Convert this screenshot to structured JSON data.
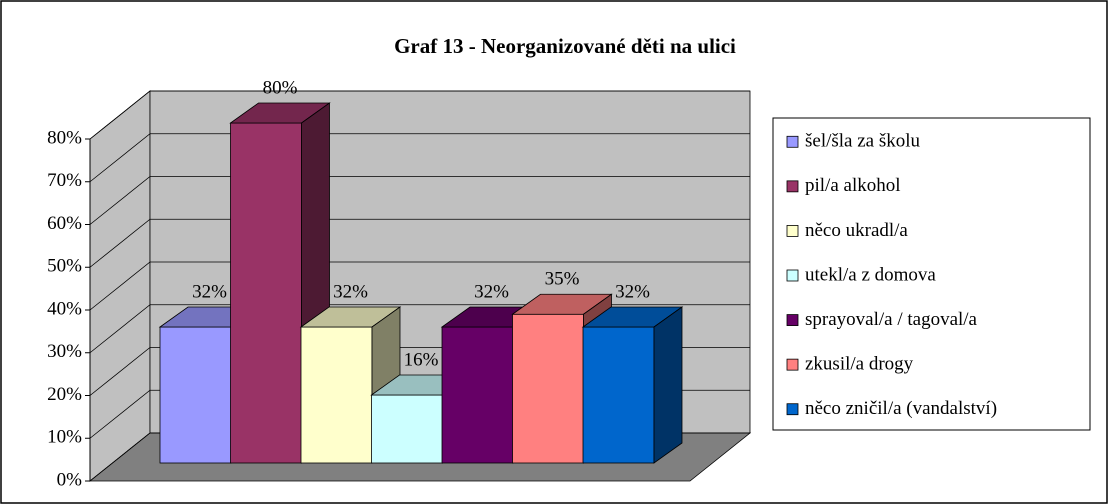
{
  "chart_data": {
    "type": "bar3d",
    "title": "Graf 13 - Neorganizované děti na ulici",
    "series": [
      {
        "name": "šel/šla za školu",
        "color": "#9999ff",
        "values": [
          32
        ],
        "value_labels": [
          "32%"
        ]
      },
      {
        "name": "pil/a alkohol",
        "color": "#993366",
        "values": [
          80
        ],
        "value_labels": [
          "80%"
        ]
      },
      {
        "name": "něco ukradl/a",
        "color": "#ffffcc",
        "values": [
          32
        ],
        "value_labels": [
          "32%"
        ]
      },
      {
        "name": "utekl/a z domova",
        "color": "#ccffff",
        "values": [
          16
        ],
        "value_labels": [
          "16%"
        ]
      },
      {
        "name": "sprayoval/a / tagoval/a",
        "color": "#660066",
        "values": [
          32
        ],
        "value_labels": [
          "32%"
        ]
      },
      {
        "name": "zkusil/a drogy",
        "color": "#ff8080",
        "values": [
          35
        ],
        "value_labels": [
          "35%"
        ]
      },
      {
        "name": "něco zničil/a (vandalství)",
        "color": "#0066cc",
        "values": [
          32
        ],
        "value_labels": [
          "32%"
        ]
      }
    ],
    "ylim": [
      0,
      80
    ],
    "yticks": [
      {
        "value": 0,
        "label": "0%"
      },
      {
        "value": 10,
        "label": "10%"
      },
      {
        "value": 20,
        "label": "20%"
      },
      {
        "value": 30,
        "label": "30%"
      },
      {
        "value": 40,
        "label": "40%"
      },
      {
        "value": 50,
        "label": "50%"
      },
      {
        "value": 60,
        "label": "60%"
      },
      {
        "value": 70,
        "label": "70%"
      },
      {
        "value": 80,
        "label": "80%"
      }
    ],
    "grid": true,
    "legend": "right"
  }
}
